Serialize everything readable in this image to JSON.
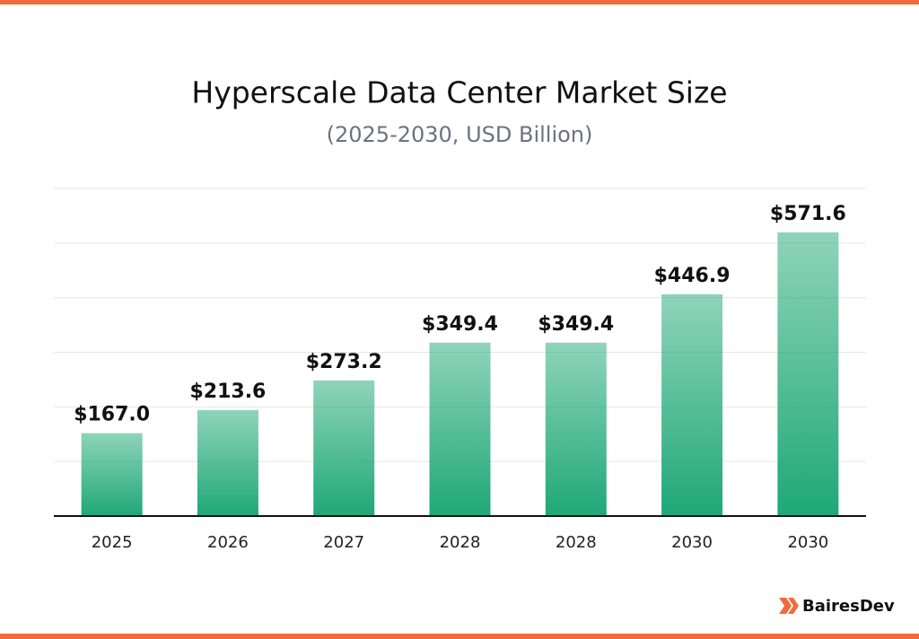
{
  "chart_data": {
    "type": "bar",
    "title": "Hyperscale Data Center Market Size",
    "subtitle": "(2025-2030, USD Billion)",
    "categories": [
      "2025",
      "2026",
      "2027",
      "2028",
      "2028",
      "2030",
      "2030"
    ],
    "values": [
      167.0,
      213.6,
      273.2,
      349.4,
      349.4,
      446.9,
      571.6
    ],
    "value_labels": [
      "$167.0",
      "$213.6",
      "$273.2",
      "$349.4",
      "$349.4",
      "$446.9",
      "$571.6"
    ],
    "color": "#1fa877",
    "ylim": [
      0,
      660
    ],
    "yticks": [
      0,
      110,
      220,
      330,
      440,
      550,
      660
    ],
    "grid": true
  },
  "brand": "BairesDev"
}
